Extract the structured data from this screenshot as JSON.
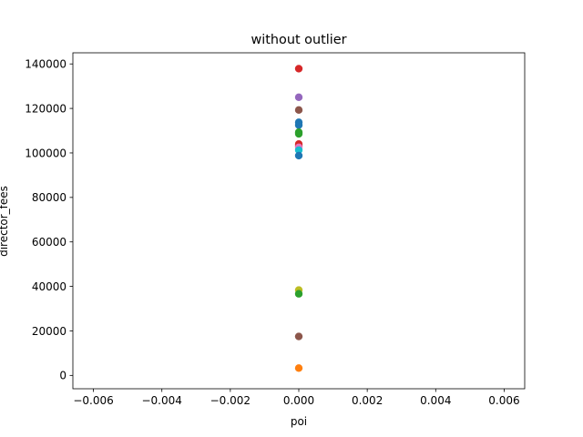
{
  "chart_data": {
    "type": "scatter",
    "title": "without outlier",
    "xlabel": "poi",
    "ylabel": "director_fees",
    "xlim": [
      -0.0066,
      0.0066
    ],
    "ylim": [
      -6000,
      145000
    ],
    "grid": false,
    "xticks": [
      -0.006,
      -0.004,
      -0.002,
      0.0,
      0.002,
      0.004,
      0.006
    ],
    "xtick_labels": [
      "−0.006",
      "−0.004",
      "−0.002",
      "0.000",
      "0.002",
      "0.004",
      "0.006"
    ],
    "yticks": [
      0,
      20000,
      40000,
      60000,
      80000,
      100000,
      120000,
      140000
    ],
    "ytick_labels": [
      "0",
      "20000",
      "40000",
      "60000",
      "80000",
      "100000",
      "120000",
      "140000"
    ],
    "points": [
      {
        "x": 0,
        "y": 137864,
        "color": "#d62728"
      },
      {
        "x": 0,
        "y": 125034,
        "color": "#9467bd"
      },
      {
        "x": 0,
        "y": 119292,
        "color": "#8c564b"
      },
      {
        "x": 0,
        "y": 113784,
        "color": "#1f77b4"
      },
      {
        "x": 0,
        "y": 112492,
        "color": "#1f77b4"
      },
      {
        "x": 0,
        "y": 109292,
        "color": "#2ca02c"
      },
      {
        "x": 0,
        "y": 108579,
        "color": "#2ca02c"
      },
      {
        "x": 0,
        "y": 104000,
        "color": "#d62728"
      },
      {
        "x": 0,
        "y": 103224,
        "color": "#d62728"
      },
      {
        "x": 0,
        "y": 102500,
        "color": "#e377c2"
      },
      {
        "x": 0,
        "y": 101250,
        "color": "#17becf"
      },
      {
        "x": 0,
        "y": 98784,
        "color": "#1f77b4"
      },
      {
        "x": 0,
        "y": 38346,
        "color": "#bcbd22"
      },
      {
        "x": 0,
        "y": 36666,
        "color": "#2ca02c"
      },
      {
        "x": 0,
        "y": 17500,
        "color": "#8c564b"
      },
      {
        "x": 0,
        "y": 3285,
        "color": "#ff7f0e"
      }
    ]
  }
}
